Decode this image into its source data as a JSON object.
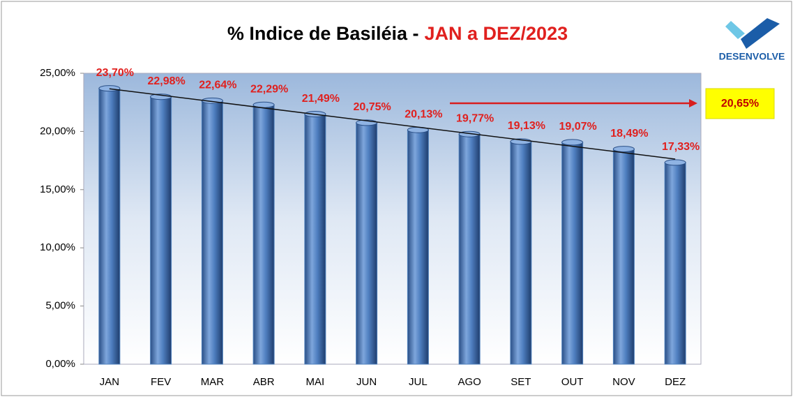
{
  "chart_data": {
    "type": "bar",
    "title": "% Indice de Basiléia -",
    "title_highlight": "JAN a DEZ/2023",
    "logo": "DESENVOLVE",
    "annotation": "20,65%",
    "categories": [
      "JAN",
      "FEV",
      "MAR",
      "ABR",
      "MAI",
      "JUN",
      "JUL",
      "AGO",
      "SET",
      "OUT",
      "NOV",
      "DEZ"
    ],
    "values": [
      23.7,
      22.98,
      22.64,
      22.29,
      21.49,
      20.75,
      20.13,
      19.77,
      19.13,
      19.07,
      18.49,
      17.33
    ],
    "value_labels": [
      "23,70%",
      "22,98%",
      "22,64%",
      "22,29%",
      "21,49%",
      "20,75%",
      "20,13%",
      "19,77%",
      "19,13%",
      "19,07%",
      "18,49%",
      "17,33%"
    ],
    "color": "#4f81bd",
    "ylim": [
      0,
      25
    ],
    "yticks": [
      {
        "value": 0,
        "label": "0,00%"
      },
      {
        "value": 5,
        "label": "5,00%"
      },
      {
        "value": 10,
        "label": "10,00%"
      },
      {
        "value": 15,
        "label": "15,00%"
      },
      {
        "value": 20,
        "label": "20,00%"
      },
      {
        "value": 25,
        "label": "25,00%"
      }
    ],
    "trendline": true
  }
}
